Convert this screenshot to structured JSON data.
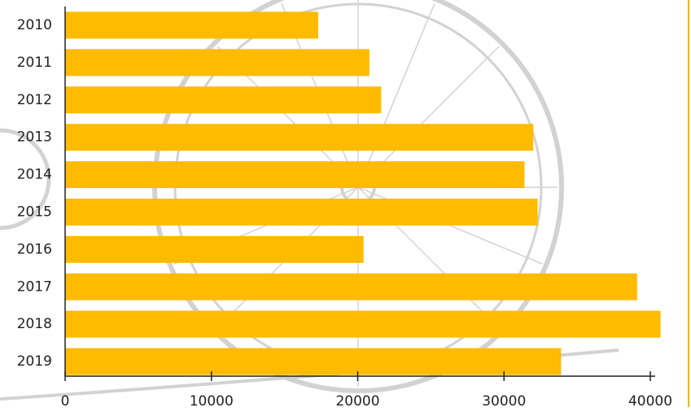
{
  "chart_data": {
    "type": "barh",
    "categories": [
      "2010",
      "2011",
      "2012",
      "2013",
      "2014",
      "2015",
      "2016",
      "2017",
      "2018",
      "2019"
    ],
    "values": [
      17300,
      20800,
      21600,
      32000,
      31400,
      32300,
      20400,
      39100,
      40700,
      33900
    ],
    "color": "#ffbb00",
    "xlim": [
      0,
      40000
    ],
    "xticks": [
      0,
      10000,
      20000,
      30000,
      40000
    ]
  }
}
